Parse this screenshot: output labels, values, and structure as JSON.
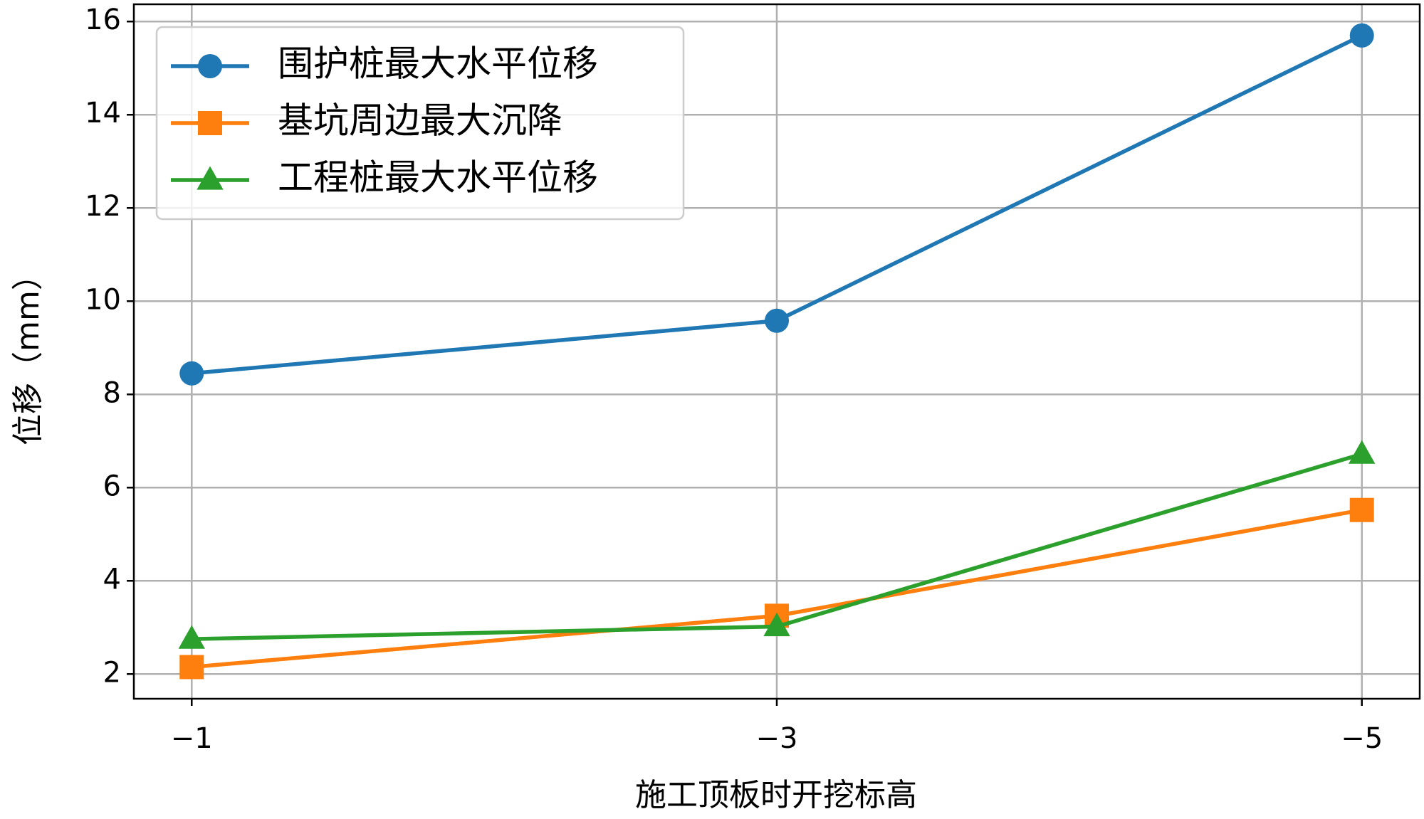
{
  "chart_data": {
    "type": "line",
    "x_label": "施工顶板时开挖标高",
    "y_label": "位移（mm）",
    "categories": [
      "−1",
      "−3",
      "−5"
    ],
    "series": [
      {
        "name": "围护桩最大水平位移",
        "color": "#1f77b4",
        "marker": "circle",
        "values": [
          8.45,
          9.58,
          15.7
        ]
      },
      {
        "name": "基坑周边最大沉降",
        "color": "#ff7f0e",
        "marker": "square",
        "values": [
          2.15,
          3.25,
          5.52
        ]
      },
      {
        "name": "工程桩最大水平位移",
        "color": "#2ca02c",
        "marker": "triangle",
        "values": [
          2.75,
          3.02,
          6.72
        ]
      }
    ],
    "ylim": [
      1.47,
      16.37
    ],
    "yticks": [
      2,
      4,
      6,
      8,
      10,
      12,
      14,
      16
    ],
    "grid": true,
    "legend": "upper left"
  }
}
